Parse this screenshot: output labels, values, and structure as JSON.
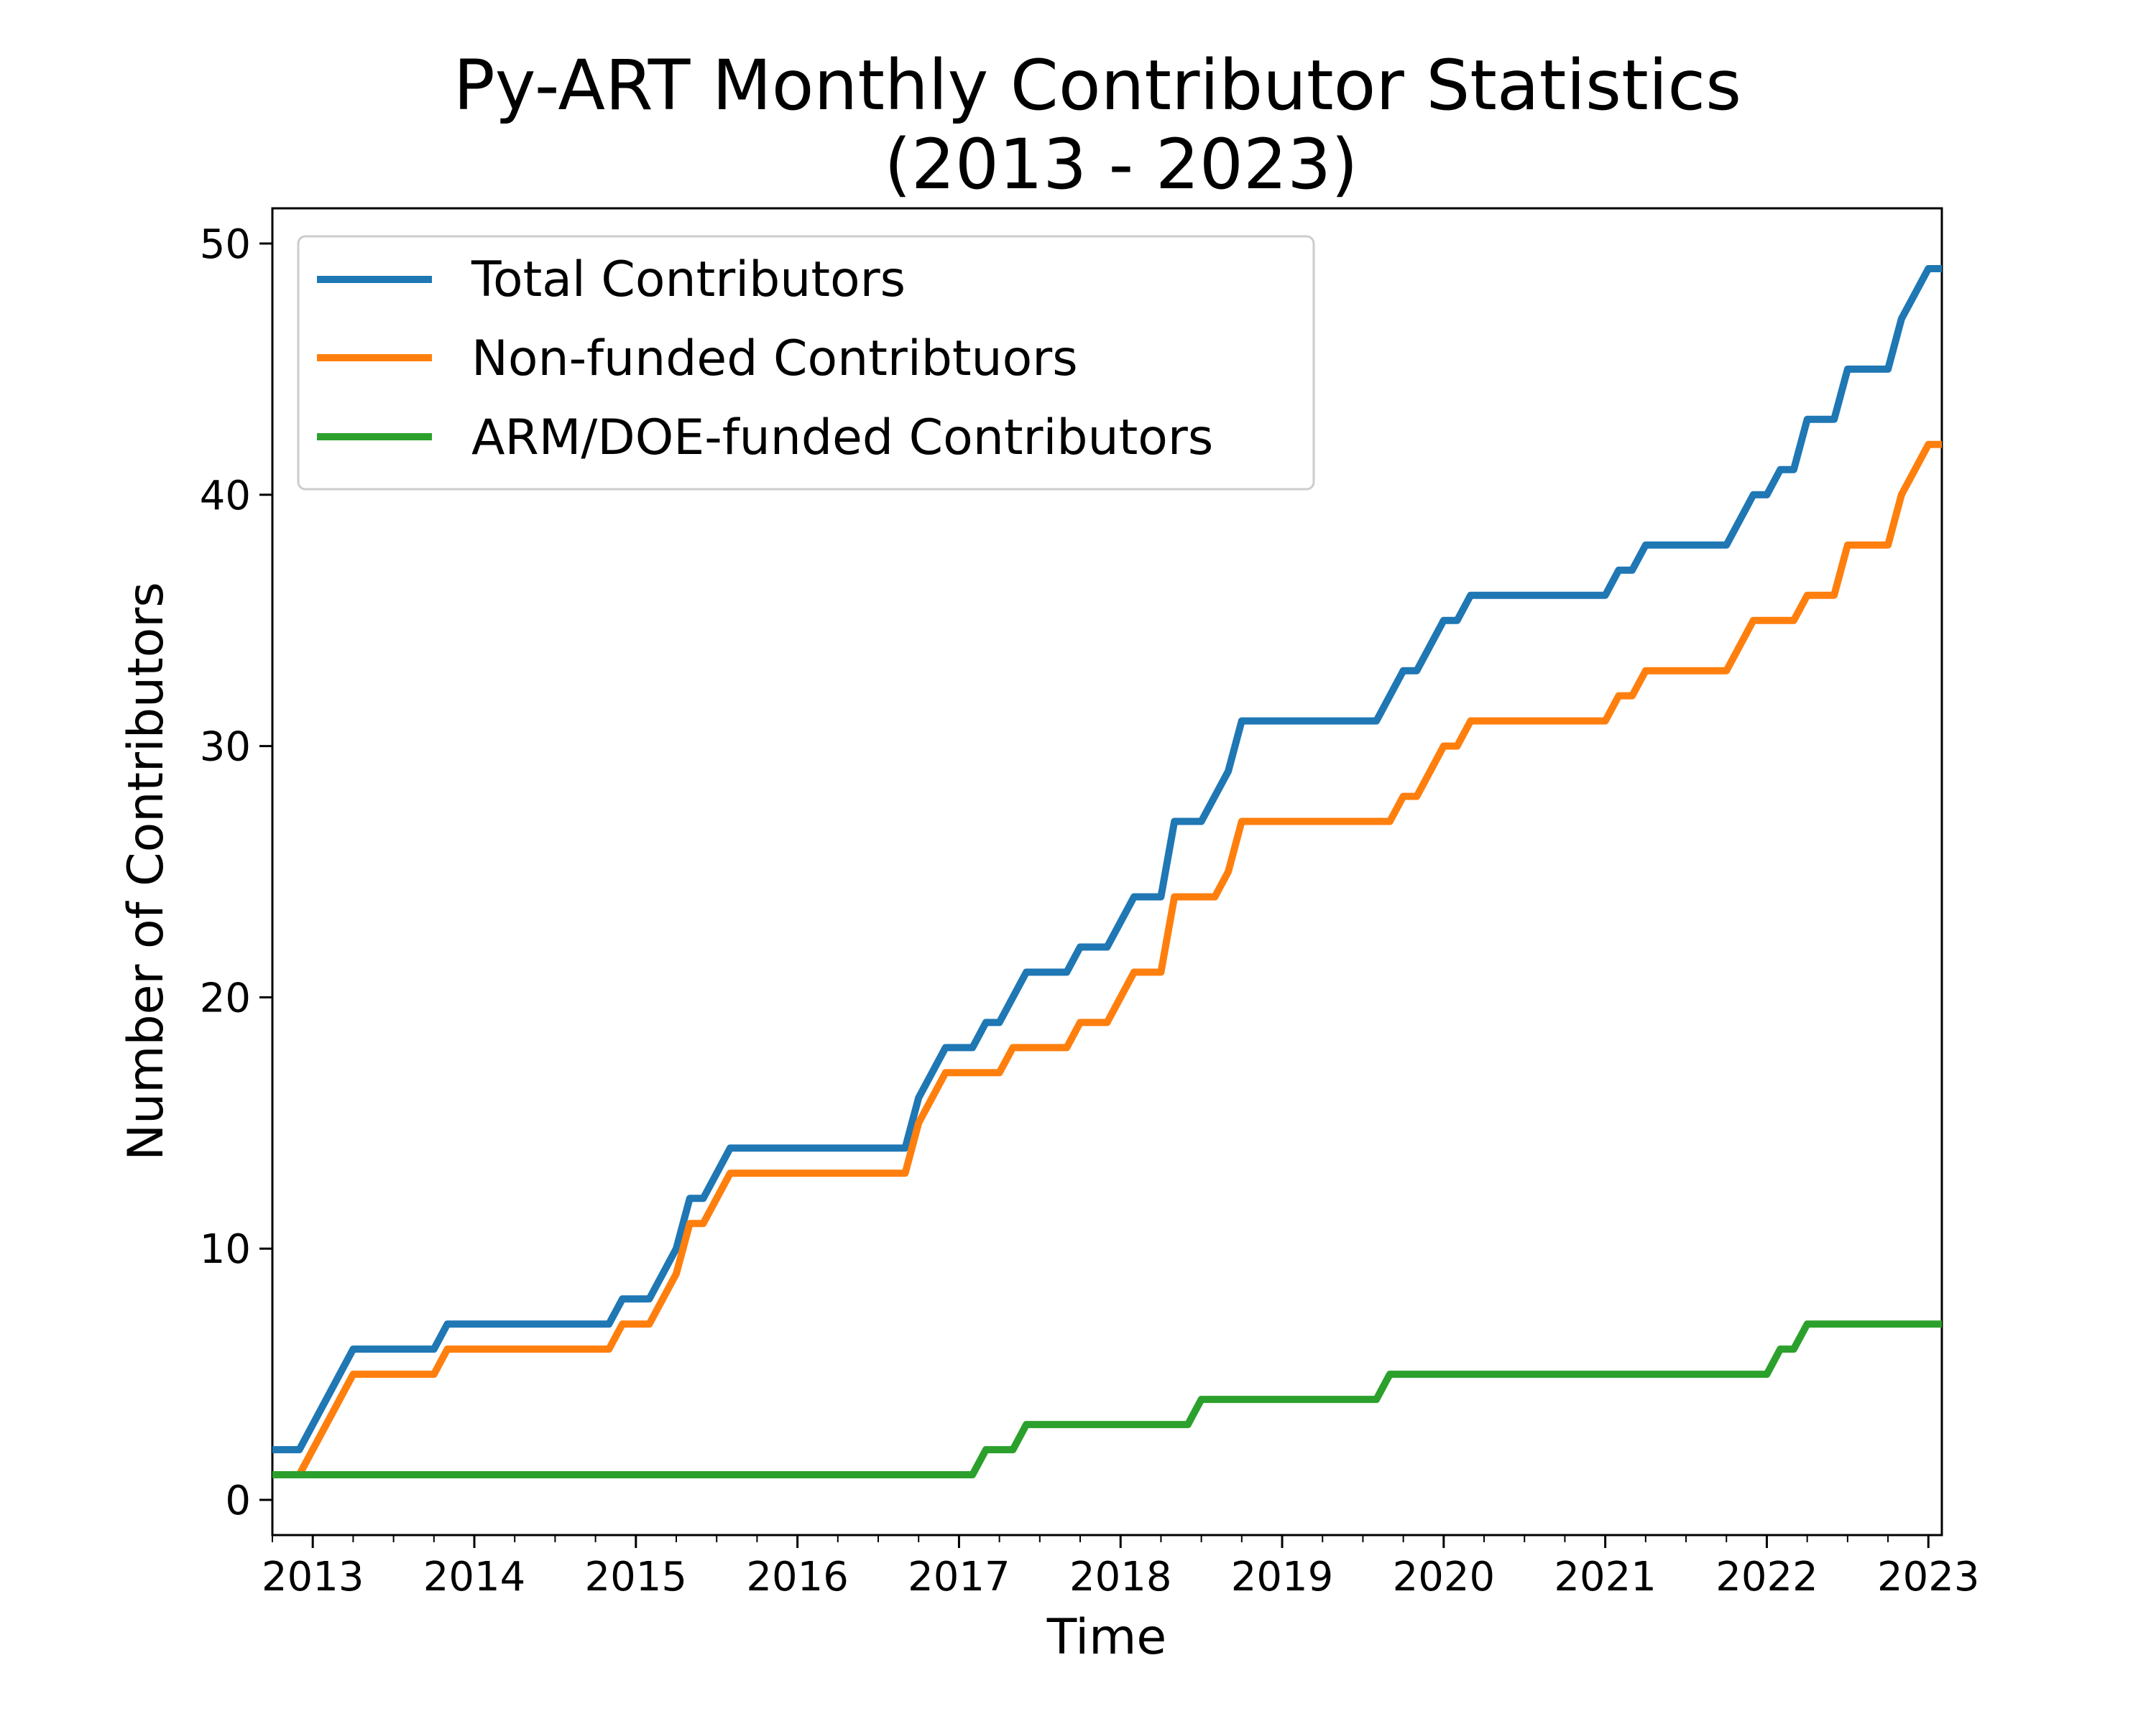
{
  "chart_data": {
    "type": "line",
    "title_lines": [
      "Py-ART Monthly Contributor Statistics",
      "(2013 - 2023)"
    ],
    "xlabel": "Time",
    "ylabel": "Number of Contributors",
    "xlim": [
      "2012-10",
      "2023-02"
    ],
    "ylim": [
      -1.4,
      51.4
    ],
    "x_ticks": [
      "2013",
      "2014",
      "2015",
      "2016",
      "2017",
      "2018",
      "2019",
      "2020",
      "2021",
      "2022",
      "2023"
    ],
    "y_ticks": [
      "0",
      "10",
      "20",
      "30",
      "40",
      "50"
    ],
    "grid": false,
    "legend_position": "top-left",
    "series": [
      {
        "name": "Total Contributors",
        "color": "#1f77b4",
        "points": [
          [
            "2012-10",
            2
          ],
          [
            "2012-12",
            2
          ],
          [
            "2013-04",
            6
          ],
          [
            "2013-10",
            6
          ],
          [
            "2013-11",
            7
          ],
          [
            "2014-11",
            7
          ],
          [
            "2014-12",
            8
          ],
          [
            "2015-02",
            8
          ],
          [
            "2015-04",
            10
          ],
          [
            "2015-05",
            12
          ],
          [
            "2015-06",
            12
          ],
          [
            "2015-08",
            14
          ],
          [
            "2016-09",
            14
          ],
          [
            "2016-10",
            16
          ],
          [
            "2016-12",
            18
          ],
          [
            "2017-02",
            18
          ],
          [
            "2017-03",
            19
          ],
          [
            "2017-04",
            19
          ],
          [
            "2017-06",
            21
          ],
          [
            "2017-09",
            21
          ],
          [
            "2017-10",
            22
          ],
          [
            "2017-12",
            22
          ],
          [
            "2018-02",
            24
          ],
          [
            "2018-04",
            24
          ],
          [
            "2018-05",
            27
          ],
          [
            "2018-07",
            27
          ],
          [
            "2018-09",
            29
          ],
          [
            "2018-10",
            31
          ],
          [
            "2019-08",
            31
          ],
          [
            "2019-10",
            33
          ],
          [
            "2019-11",
            33
          ],
          [
            "2020-01",
            35
          ],
          [
            "2020-02",
            35
          ],
          [
            "2020-03",
            36
          ],
          [
            "2021-01",
            36
          ],
          [
            "2021-02",
            37
          ],
          [
            "2021-03",
            37
          ],
          [
            "2021-04",
            38
          ],
          [
            "2021-10",
            38
          ],
          [
            "2021-12",
            40
          ],
          [
            "2022-01",
            40
          ],
          [
            "2022-02",
            41
          ],
          [
            "2022-03",
            41
          ],
          [
            "2022-04",
            43
          ],
          [
            "2022-06",
            43
          ],
          [
            "2022-07",
            45
          ],
          [
            "2022-10",
            45
          ],
          [
            "2022-11",
            47
          ],
          [
            "2023-01",
            49
          ],
          [
            "2023-02",
            49
          ]
        ]
      },
      {
        "name": "Non-funded Contribtuors",
        "color": "#ff7f0e",
        "points": [
          [
            "2012-10",
            1
          ],
          [
            "2012-12",
            1
          ],
          [
            "2013-04",
            5
          ],
          [
            "2013-10",
            5
          ],
          [
            "2013-11",
            6
          ],
          [
            "2014-11",
            6
          ],
          [
            "2014-12",
            7
          ],
          [
            "2015-02",
            7
          ],
          [
            "2015-04",
            9
          ],
          [
            "2015-05",
            11
          ],
          [
            "2015-06",
            11
          ],
          [
            "2015-08",
            13
          ],
          [
            "2016-09",
            13
          ],
          [
            "2016-10",
            15
          ],
          [
            "2016-12",
            17
          ],
          [
            "2017-04",
            17
          ],
          [
            "2017-05",
            18
          ],
          [
            "2017-09",
            18
          ],
          [
            "2017-10",
            19
          ],
          [
            "2017-12",
            19
          ],
          [
            "2018-02",
            21
          ],
          [
            "2018-04",
            21
          ],
          [
            "2018-05",
            24
          ],
          [
            "2018-08",
            24
          ],
          [
            "2018-09",
            25
          ],
          [
            "2018-10",
            27
          ],
          [
            "2019-09",
            27
          ],
          [
            "2019-10",
            28
          ],
          [
            "2019-11",
            28
          ],
          [
            "2020-01",
            30
          ],
          [
            "2020-02",
            30
          ],
          [
            "2020-03",
            31
          ],
          [
            "2021-01",
            31
          ],
          [
            "2021-02",
            32
          ],
          [
            "2021-03",
            32
          ],
          [
            "2021-04",
            33
          ],
          [
            "2021-10",
            33
          ],
          [
            "2021-12",
            35
          ],
          [
            "2022-03",
            35
          ],
          [
            "2022-04",
            36
          ],
          [
            "2022-06",
            36
          ],
          [
            "2022-07",
            38
          ],
          [
            "2022-10",
            38
          ],
          [
            "2022-11",
            40
          ],
          [
            "2023-01",
            42
          ],
          [
            "2023-02",
            42
          ]
        ]
      },
      {
        "name": "ARM/DOE-funded Contributors",
        "color": "#2ca02c",
        "points": [
          [
            "2012-10",
            1
          ],
          [
            "2017-02",
            1
          ],
          [
            "2017-03",
            2
          ],
          [
            "2017-05",
            2
          ],
          [
            "2017-06",
            3
          ],
          [
            "2018-06",
            3
          ],
          [
            "2018-07",
            4
          ],
          [
            "2019-08",
            4
          ],
          [
            "2019-09",
            5
          ],
          [
            "2022-01",
            5
          ],
          [
            "2022-02",
            6
          ],
          [
            "2022-03",
            6
          ],
          [
            "2022-04",
            7
          ],
          [
            "2023-02",
            7
          ]
        ]
      }
    ]
  }
}
